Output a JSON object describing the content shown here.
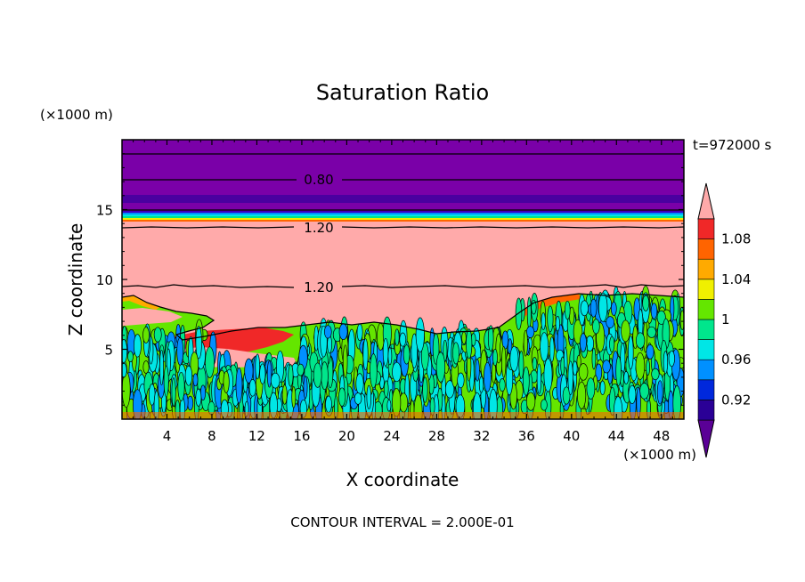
{
  "chart_data": {
    "type": "heatmap",
    "title": "Saturation Ratio",
    "xlabel": "X coordinate",
    "ylabel": "Z coordinate",
    "x_unit": "(×1000 m)",
    "y_unit": "(×1000 m)",
    "time_label": "t=972000 s",
    "footer": "CONTOUR INTERVAL = 2.000E-01",
    "xlim": [
      0,
      50
    ],
    "ylim": [
      0,
      20
    ],
    "x_ticks": [
      4,
      8,
      12,
      16,
      20,
      24,
      28,
      32,
      36,
      40,
      44,
      48
    ],
    "y_ticks": [
      5,
      10,
      15
    ],
    "colorbar": {
      "levels": [
        0.9,
        0.92,
        0.94,
        0.96,
        0.98,
        1.0,
        1.02,
        1.04,
        1.06,
        1.08,
        1.1
      ],
      "colors": [
        "#5a0096",
        "#2a0096",
        "#0028dc",
        "#0090ff",
        "#00e6e6",
        "#00e68c",
        "#64e600",
        "#f0f000",
        "#ffaa00",
        "#ff6400",
        "#f02828",
        "#ffaaaa"
      ],
      "tick_labels": [
        {
          "value": 0.92,
          "label": "0.92"
        },
        {
          "value": 0.96,
          "label": "0.96"
        },
        {
          "value": 1.0,
          "label": "1"
        },
        {
          "value": 1.04,
          "label": "1.04"
        },
        {
          "value": 1.08,
          "label": "1.08"
        }
      ]
    },
    "contour_labels": [
      {
        "label": "0.80",
        "x": 17.5,
        "z": 16.9
      },
      {
        "label": "1.20",
        "x": 17.5,
        "z": 13.6
      },
      {
        "label": "1.20",
        "x": 17.5,
        "z": 9.5
      }
    ],
    "layers": [
      {
        "z_bottom": 15.6,
        "z_top": 20.0,
        "value": 0.8,
        "description_color": "#7a00a8"
      },
      {
        "z_bottom": 14.3,
        "z_top": 14.8,
        "value": 1.0,
        "description_color": "#00e6e6"
      },
      {
        "z_bottom": 9.0,
        "z_top": 14.3,
        "value": 1.2,
        "description_color": "#ffaaaa"
      },
      {
        "z_bottom": 0.0,
        "z_top": 8.5,
        "value": 1.0,
        "description_color": "#64e600"
      }
    ]
  }
}
